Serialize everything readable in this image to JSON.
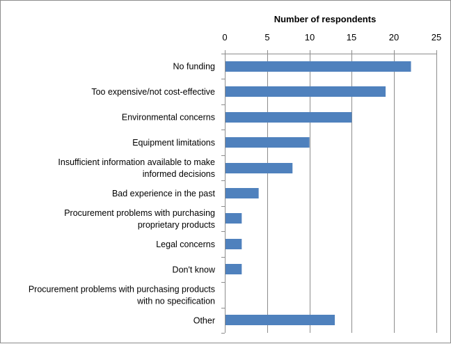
{
  "chart_data": {
    "type": "bar",
    "orientation": "horizontal",
    "xlabel": "Number of respondents",
    "xlim": [
      0,
      25
    ],
    "x_ticks": [
      0,
      5,
      10,
      15,
      20,
      25
    ],
    "x_axis_position": "top",
    "grid": true,
    "legend": "none",
    "bar_color": "#4f81bd",
    "categories": [
      "No funding",
      "Too expensive/not cost-effective",
      "Environmental concerns",
      "Equipment limitations",
      "Insufficient information available to make informed decisions",
      "Bad experience in the past",
      "Procurement problems with purchasing proprietary products",
      "Legal concerns",
      "Don't know",
      "Procurement problems with purchasing products with no specification",
      "Other"
    ],
    "category_lines": [
      [
        "No funding"
      ],
      [
        "Too expensive/not cost-effective"
      ],
      [
        "Environmental concerns"
      ],
      [
        "Equipment limitations"
      ],
      [
        "Insufficient information available to make",
        "informed decisions"
      ],
      [
        "Bad experience in the past"
      ],
      [
        "Procurement problems with purchasing",
        "proprietary products"
      ],
      [
        "Legal concerns"
      ],
      [
        "Don't know"
      ],
      [
        "Procurement problems with purchasing products",
        "with no specification"
      ],
      [
        "Other"
      ]
    ],
    "values": [
      22,
      19,
      15,
      10,
      8,
      4,
      2,
      2,
      2,
      0,
      13
    ]
  }
}
